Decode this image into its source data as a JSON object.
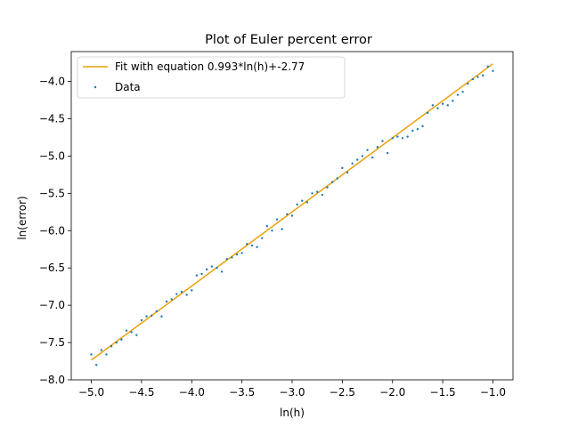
{
  "chart_data": {
    "type": "scatter",
    "title": "Plot of Euler percent error",
    "xlabel": "ln(h)",
    "ylabel": "ln(error)",
    "xlim": [
      -5.2,
      -0.8
    ],
    "ylim": [
      -8.0,
      -3.6
    ],
    "xticks": [
      -5.0,
      -4.5,
      -4.0,
      -3.5,
      -3.0,
      -2.5,
      -2.0,
      -1.5,
      -1.0
    ],
    "xtick_labels": [
      "−5.0",
      "−4.5",
      "−4.0",
      "−3.5",
      "−3.0",
      "−2.5",
      "−2.0",
      "−1.5",
      "−1.0"
    ],
    "yticks": [
      -8.0,
      -7.5,
      -7.0,
      -6.5,
      -6.0,
      -5.5,
      -5.0,
      -4.5,
      -4.0
    ],
    "ytick_labels": [
      "−8.0",
      "−7.5",
      "−7.0",
      "−6.5",
      "−6.0",
      "−5.5",
      "−5.0",
      "−4.5",
      "−4.0"
    ],
    "grid": false,
    "legend_position": "top-left",
    "series": [
      {
        "name": "Fit with equation 0.993*ln(h)+-2.77",
        "kind": "line",
        "color": "#eaa10c",
        "x": [
          -5.0,
          -1.0
        ],
        "y": [
          -7.735,
          -3.763
        ]
      },
      {
        "name": "Data",
        "kind": "scatter",
        "color": "#1f77b4",
        "x": [
          -5.0,
          -4.95,
          -4.9,
          -4.85,
          -4.8,
          -4.75,
          -4.7,
          -4.65,
          -4.6,
          -4.55,
          -4.5,
          -4.45,
          -4.4,
          -4.35,
          -4.3,
          -4.25,
          -4.2,
          -4.15,
          -4.1,
          -4.05,
          -4.0,
          -3.95,
          -3.9,
          -3.85,
          -3.8,
          -3.75,
          -3.7,
          -3.65,
          -3.6,
          -3.55,
          -3.5,
          -3.45,
          -3.4,
          -3.35,
          -3.3,
          -3.25,
          -3.2,
          -3.15,
          -3.1,
          -3.05,
          -3.0,
          -2.95,
          -2.9,
          -2.85,
          -2.8,
          -2.75,
          -2.7,
          -2.65,
          -2.6,
          -2.55,
          -2.5,
          -2.45,
          -2.4,
          -2.35,
          -2.3,
          -2.25,
          -2.2,
          -2.15,
          -2.1,
          -2.05,
          -2.0,
          -1.95,
          -1.9,
          -1.85,
          -1.8,
          -1.75,
          -1.7,
          -1.65,
          -1.6,
          -1.55,
          -1.5,
          -1.45,
          -1.4,
          -1.35,
          -1.3,
          -1.25,
          -1.2,
          -1.15,
          -1.1,
          -1.05,
          -1.0
        ],
        "y": [
          -7.66,
          -7.8,
          -7.6,
          -7.66,
          -7.55,
          -7.5,
          -7.46,
          -7.34,
          -7.36,
          -7.4,
          -7.2,
          -7.15,
          -7.14,
          -7.08,
          -7.15,
          -6.95,
          -6.92,
          -6.85,
          -6.82,
          -6.86,
          -6.8,
          -6.6,
          -6.58,
          -6.52,
          -6.48,
          -6.5,
          -6.55,
          -6.38,
          -6.36,
          -6.32,
          -6.3,
          -6.18,
          -6.2,
          -6.22,
          -6.1,
          -5.94,
          -6.0,
          -5.85,
          -5.98,
          -5.78,
          -5.8,
          -5.65,
          -5.6,
          -5.62,
          -5.5,
          -5.48,
          -5.52,
          -5.42,
          -5.35,
          -5.3,
          -5.16,
          -5.22,
          -5.1,
          -5.05,
          -5.0,
          -4.92,
          -5.02,
          -4.88,
          -4.8,
          -4.96,
          -4.76,
          -4.74,
          -4.76,
          -4.74,
          -4.66,
          -4.64,
          -4.6,
          -4.42,
          -4.32,
          -4.36,
          -4.3,
          -4.32,
          -4.26,
          -4.18,
          -4.14,
          -4.03,
          -3.97,
          -3.94,
          -3.92,
          -3.8,
          -3.86
        ]
      }
    ]
  }
}
